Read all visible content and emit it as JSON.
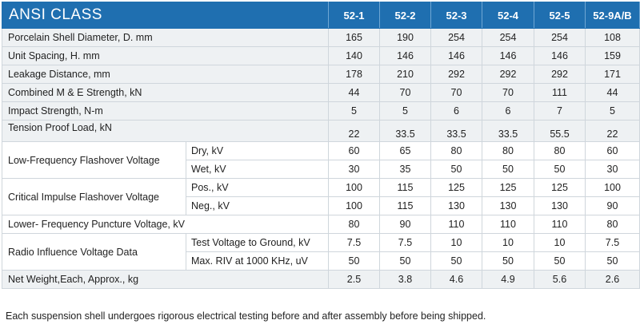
{
  "table": {
    "title": "ANSI  CLASS",
    "columns": [
      "52-1",
      "52-2",
      "52-3",
      "52-4",
      "52-5",
      "52-9A/B"
    ],
    "rows": [
      {
        "label": "Porcelain Shell Diameter, D. mm",
        "values": [
          "165",
          "190",
          "254",
          "254",
          "254",
          "108"
        ]
      },
      {
        "label": "Unit Spacing, H. mm",
        "values": [
          "140",
          "146",
          "146",
          "146",
          "146",
          "159"
        ]
      },
      {
        "label": "Leakage Distance, mm",
        "values": [
          "178",
          "210",
          "292",
          "292",
          "292",
          "171"
        ]
      },
      {
        "label": "Combined M & E Strength, kN",
        "values": [
          "44",
          "70",
          "70",
          "70",
          "111",
          "44"
        ]
      },
      {
        "label": "Impact Strength, N-m",
        "values": [
          "5",
          "5",
          "6",
          "6",
          "7",
          "5"
        ]
      },
      {
        "label": "Tension Proof  Load, kN",
        "values": [
          "22",
          "33.5",
          "33.5",
          "33.5",
          "55.5",
          "22"
        ]
      }
    ],
    "group_rows": [
      {
        "label": "Low-Frequency Flashover Voltage",
        "subrows": [
          {
            "label": "Dry, kV",
            "values": [
              "60",
              "65",
              "80",
              "80",
              "80",
              "60"
            ]
          },
          {
            "label": "Wet, kV",
            "values": [
              "30",
              "35",
              "50",
              "50",
              "50",
              "30"
            ]
          }
        ]
      },
      {
        "label": "Critical Impulse Flashover Voltage",
        "subrows": [
          {
            "label": "Pos., kV",
            "values": [
              "100",
              "115",
              "125",
              "125",
              "125",
              "100"
            ]
          },
          {
            "label": "Neg., kV",
            "values": [
              "100",
              "115",
              "130",
              "130",
              "130",
              "90"
            ]
          }
        ]
      }
    ],
    "puncture_row": {
      "label": "Lower- Frequency Puncture Voltage, kV",
      "values": [
        "80",
        "90",
        "110",
        "110",
        "110",
        "80"
      ]
    },
    "riv_group": {
      "label": "Radio Influence Voltage Data",
      "subrows": [
        {
          "label": "Test Voltage to Ground, kV",
          "values": [
            "7.5",
            "7.5",
            "10",
            "10",
            "10",
            "7.5"
          ]
        },
        {
          "label": "Max. RIV at 1000 KHz, uV",
          "values": [
            "50",
            "50",
            "50",
            "50",
            "50",
            "50"
          ]
        }
      ]
    },
    "weight_row": {
      "label": "Net Weight,Each, Approx., kg",
      "values": [
        "2.5",
        "3.8",
        "4.6",
        "4.9",
        "5.6",
        "2.6"
      ]
    }
  },
  "footnote": "Each suspension shell undergoes rigorous electrical testing before and after assembly before being shipped.",
  "colors": {
    "header_bg": "#1f6fb0",
    "alt_row_bg": "#eef1f3",
    "border": "#cfd6dc"
  }
}
